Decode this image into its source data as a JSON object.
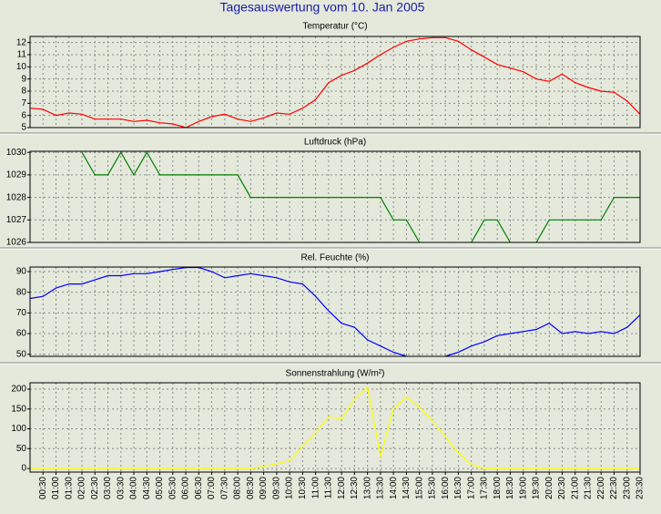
{
  "title": "Tagesauswertung vom 10. Jan 2005",
  "chart_data": [
    {
      "type": "line",
      "title": "Temperatur (°C)",
      "ylim": [
        5,
        12.5
      ],
      "yticks": [
        5,
        6,
        7,
        8,
        9,
        10,
        11,
        12
      ],
      "grid": true,
      "series": [
        {
          "name": null,
          "color": "#ff0000",
          "values": [
            6.6,
            6.5,
            6.0,
            6.2,
            6.1,
            5.7,
            5.7,
            5.7,
            5.5,
            5.6,
            5.4,
            5.3,
            5.0,
            5.5,
            5.9,
            6.1,
            5.7,
            5.5,
            5.8,
            6.2,
            6.1,
            6.6,
            7.3,
            8.7,
            9.3,
            9.7,
            10.3,
            11.0,
            11.6,
            12.1,
            12.3,
            12.4,
            12.4,
            12.1,
            11.4,
            10.8,
            10.2,
            9.9,
            9.6,
            9.0,
            8.8,
            9.4,
            8.7,
            8.3,
            8.0,
            7.9,
            7.2,
            6.1
          ]
        }
      ]
    },
    {
      "type": "line",
      "title": "Luftdruck (hPa)",
      "ylim": [
        1026,
        1030.05
      ],
      "yticks": [
        1026,
        1027,
        1028,
        1029,
        1030
      ],
      "grid": true,
      "series": [
        {
          "name": null,
          "color": "#008000",
          "values": [
            null,
            null,
            null,
            null,
            1030,
            1029,
            1029,
            1030,
            1029,
            1030,
            1029,
            1029,
            1029,
            1029,
            1029,
            1029,
            1029,
            1028,
            1028,
            1028,
            1028,
            1028,
            1028,
            1028,
            1028,
            1028,
            1028,
            1028,
            1027,
            1027,
            1026,
            null,
            null,
            null,
            1026,
            1027,
            1027,
            1026,
            null,
            1026,
            1027,
            1027,
            1027,
            1027,
            1027,
            1028,
            1028,
            1028
          ]
        }
      ]
    },
    {
      "type": "line",
      "title": "Rel. Feuchte (%)",
      "ylim": [
        49,
        92.2
      ],
      "yticks": [
        50,
        60,
        70,
        80,
        90
      ],
      "grid": true,
      "series": [
        {
          "name": null,
          "color": "#0000ff",
          "values": [
            77,
            78,
            82,
            84,
            84,
            86,
            88,
            88,
            89,
            89,
            90,
            91,
            92,
            92,
            90,
            87,
            88,
            89,
            88,
            87,
            85,
            84,
            78,
            71,
            65,
            63,
            57,
            54,
            51,
            49,
            null,
            null,
            49,
            51,
            54,
            56,
            59,
            60,
            61,
            62,
            65,
            60,
            61,
            60,
            61,
            60,
            63,
            69
          ]
        }
      ]
    },
    {
      "type": "line",
      "title": "Sonnenstrahlung (W/m²)",
      "ylim": [
        -9,
        216
      ],
      "yticks": [
        0,
        50,
        100,
        150,
        200
      ],
      "grid": true,
      "categories": [
        null,
        "00:30",
        "01:00",
        "01:30",
        "02:00",
        "02:30",
        "03:00",
        "03:30",
        "04:00",
        "04:30",
        "05:00",
        "05:30",
        "06:00",
        "06:30",
        "07:00",
        "07:30",
        "08:00",
        "08:30",
        "09:00",
        "09:30",
        "10:00",
        "10:30",
        "11:00",
        "11:30",
        "12:00",
        "12:30",
        "13:00",
        "13:30",
        "14:00",
        "14:30",
        "15:00",
        "15:30",
        "16:00",
        "16:30",
        "17:00",
        "17:30",
        "18:00",
        "18:30",
        "19:00",
        "19:30",
        "20:00",
        "20:30",
        "21:00",
        "21:30",
        "22:00",
        "22:30",
        "23:00",
        "23:30"
      ],
      "series": [
        {
          "name": null,
          "color": "#ffff00",
          "values": [
            0,
            0,
            0,
            0,
            0,
            0,
            0,
            0,
            0,
            0,
            0,
            0,
            0,
            0,
            0,
            0,
            0,
            0,
            5,
            12,
            20,
            55,
            90,
            130,
            125,
            175,
            205,
            30,
            150,
            180,
            155,
            120,
            80,
            40,
            10,
            0,
            0,
            0,
            0,
            0,
            0,
            0,
            0,
            0,
            0,
            0,
            0,
            0
          ]
        }
      ]
    }
  ]
}
